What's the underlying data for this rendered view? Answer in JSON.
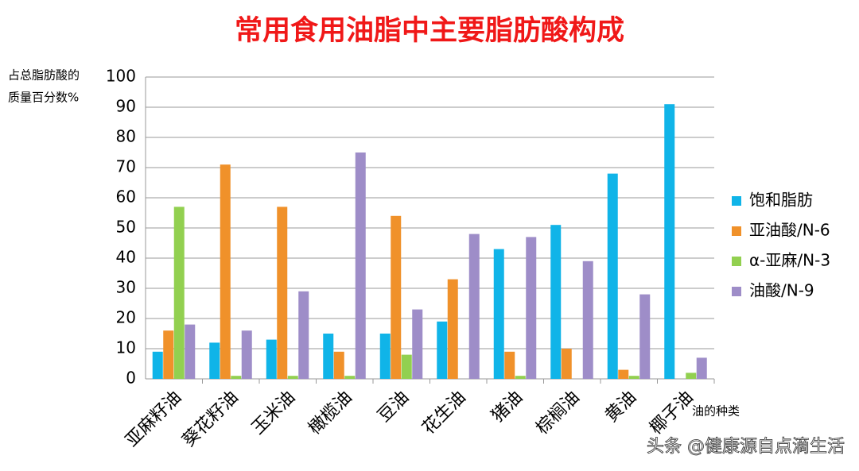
{
  "chart_data": {
    "type": "bar",
    "title": "常用食用油脂中主要脂肪酸构成",
    "y_label": [
      "占总脂肪酸的",
      "质量百分数%"
    ],
    "x_label": "油的种类",
    "categories": [
      "亚麻籽油",
      "葵花籽油",
      "玉米油",
      "橄榄油",
      "豆油",
      "花生油",
      "猪油",
      "棕榈油",
      "黄油",
      "椰子油"
    ],
    "series": [
      {
        "name": "饱和脂肪",
        "color": "#10b4e8",
        "values": [
          9,
          12,
          13,
          15,
          15,
          19,
          43,
          51,
          68,
          91
        ]
      },
      {
        "name": "亚油酸/N-6",
        "color": "#f0912a",
        "values": [
          16,
          71,
          57,
          9,
          54,
          33,
          9,
          10,
          3,
          0
        ]
      },
      {
        "name": "α-亚麻/N-3",
        "color": "#92d050",
        "values": [
          57,
          1,
          1,
          1,
          8,
          0,
          1,
          0,
          1,
          2
        ]
      },
      {
        "name": "油酸/N-9",
        "color": "#9e8dc8",
        "values": [
          18,
          16,
          29,
          75,
          23,
          48,
          47,
          39,
          28,
          7
        ]
      }
    ],
    "ylim": [
      0,
      100
    ],
    "yticks": [
      0,
      10,
      20,
      30,
      40,
      50,
      60,
      70,
      80,
      90,
      100
    ],
    "grid": true,
    "legend": "right",
    "watermark": "头条 @健康源自点滴生活"
  }
}
